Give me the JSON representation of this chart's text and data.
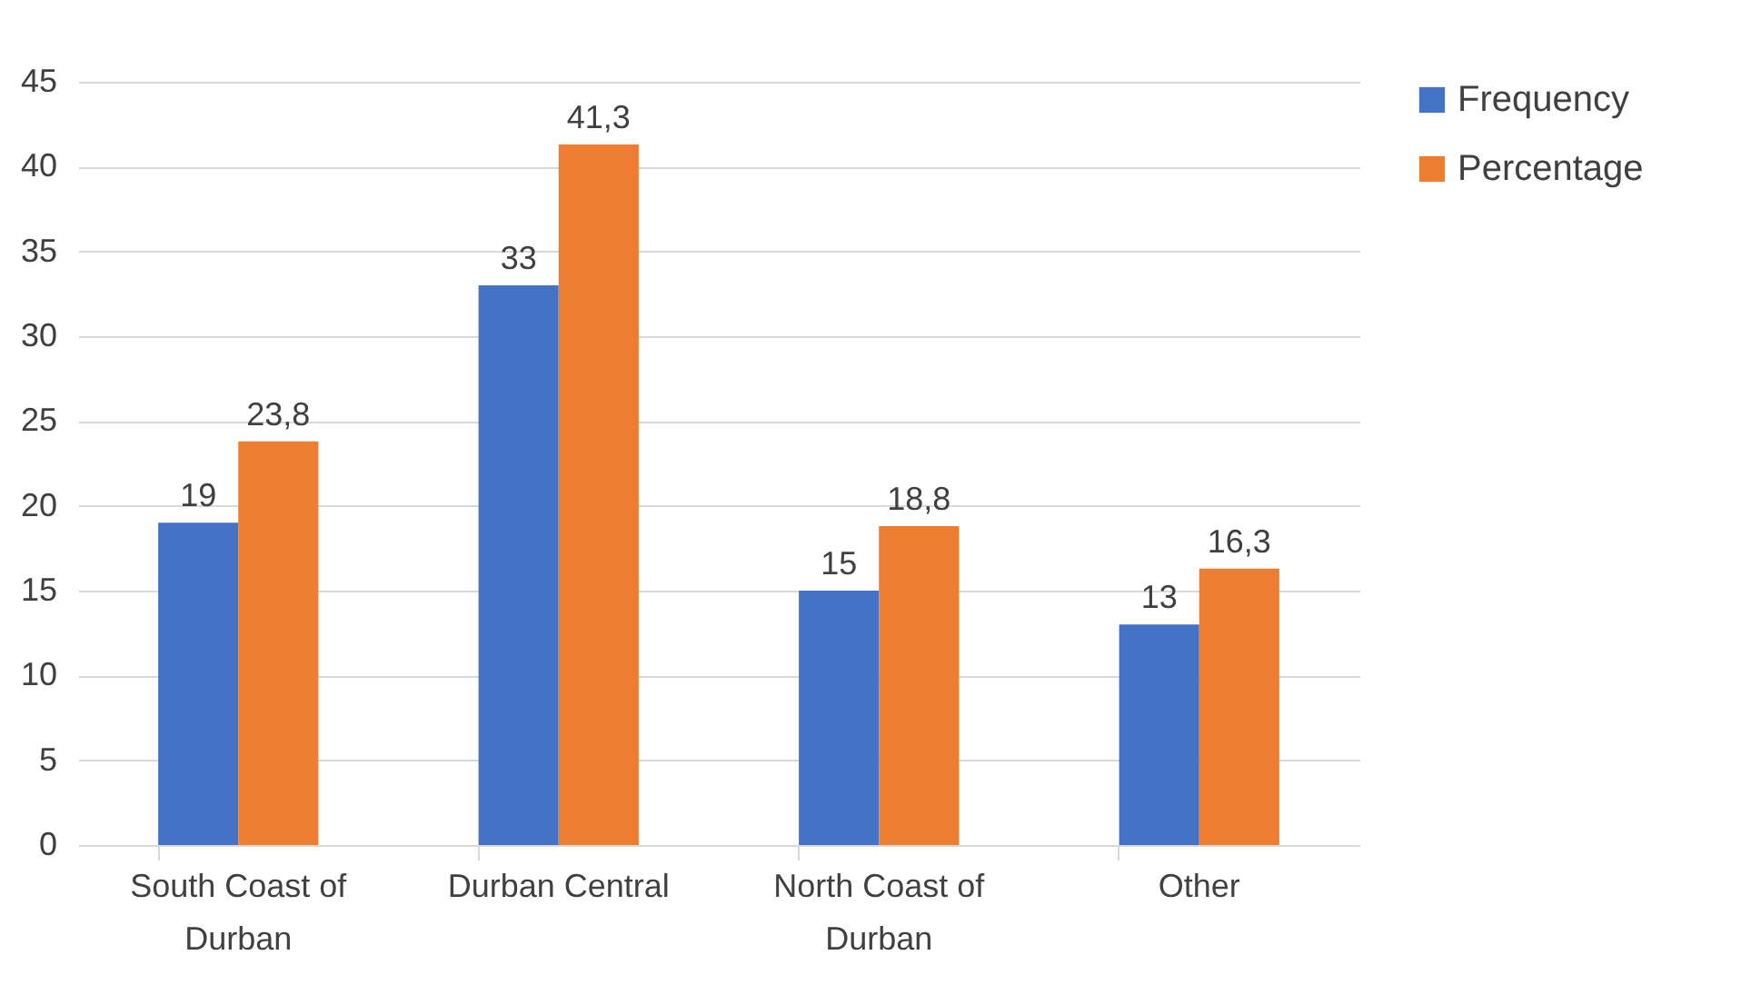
{
  "chart_data": {
    "type": "bar",
    "categories": [
      "South Coast of Durban",
      "Durban Central",
      "North Coast of Durban",
      "Other"
    ],
    "series": [
      {
        "name": "Frequency",
        "color": "#4472c4",
        "values": [
          19,
          33,
          15,
          13
        ],
        "value_labels": [
          "19",
          "33",
          "15",
          "13"
        ]
      },
      {
        "name": "Percentage",
        "color": "#ed7d31",
        "values": [
          23.8,
          41.3,
          18.8,
          16.3
        ],
        "value_labels": [
          "23,8",
          "41,3",
          "18,8",
          "16,3"
        ]
      }
    ],
    "ylim": [
      0,
      45
    ],
    "yticks": [
      0,
      5,
      10,
      15,
      20,
      25,
      30,
      35,
      40,
      45
    ],
    "grid": "y",
    "legend": "right"
  }
}
